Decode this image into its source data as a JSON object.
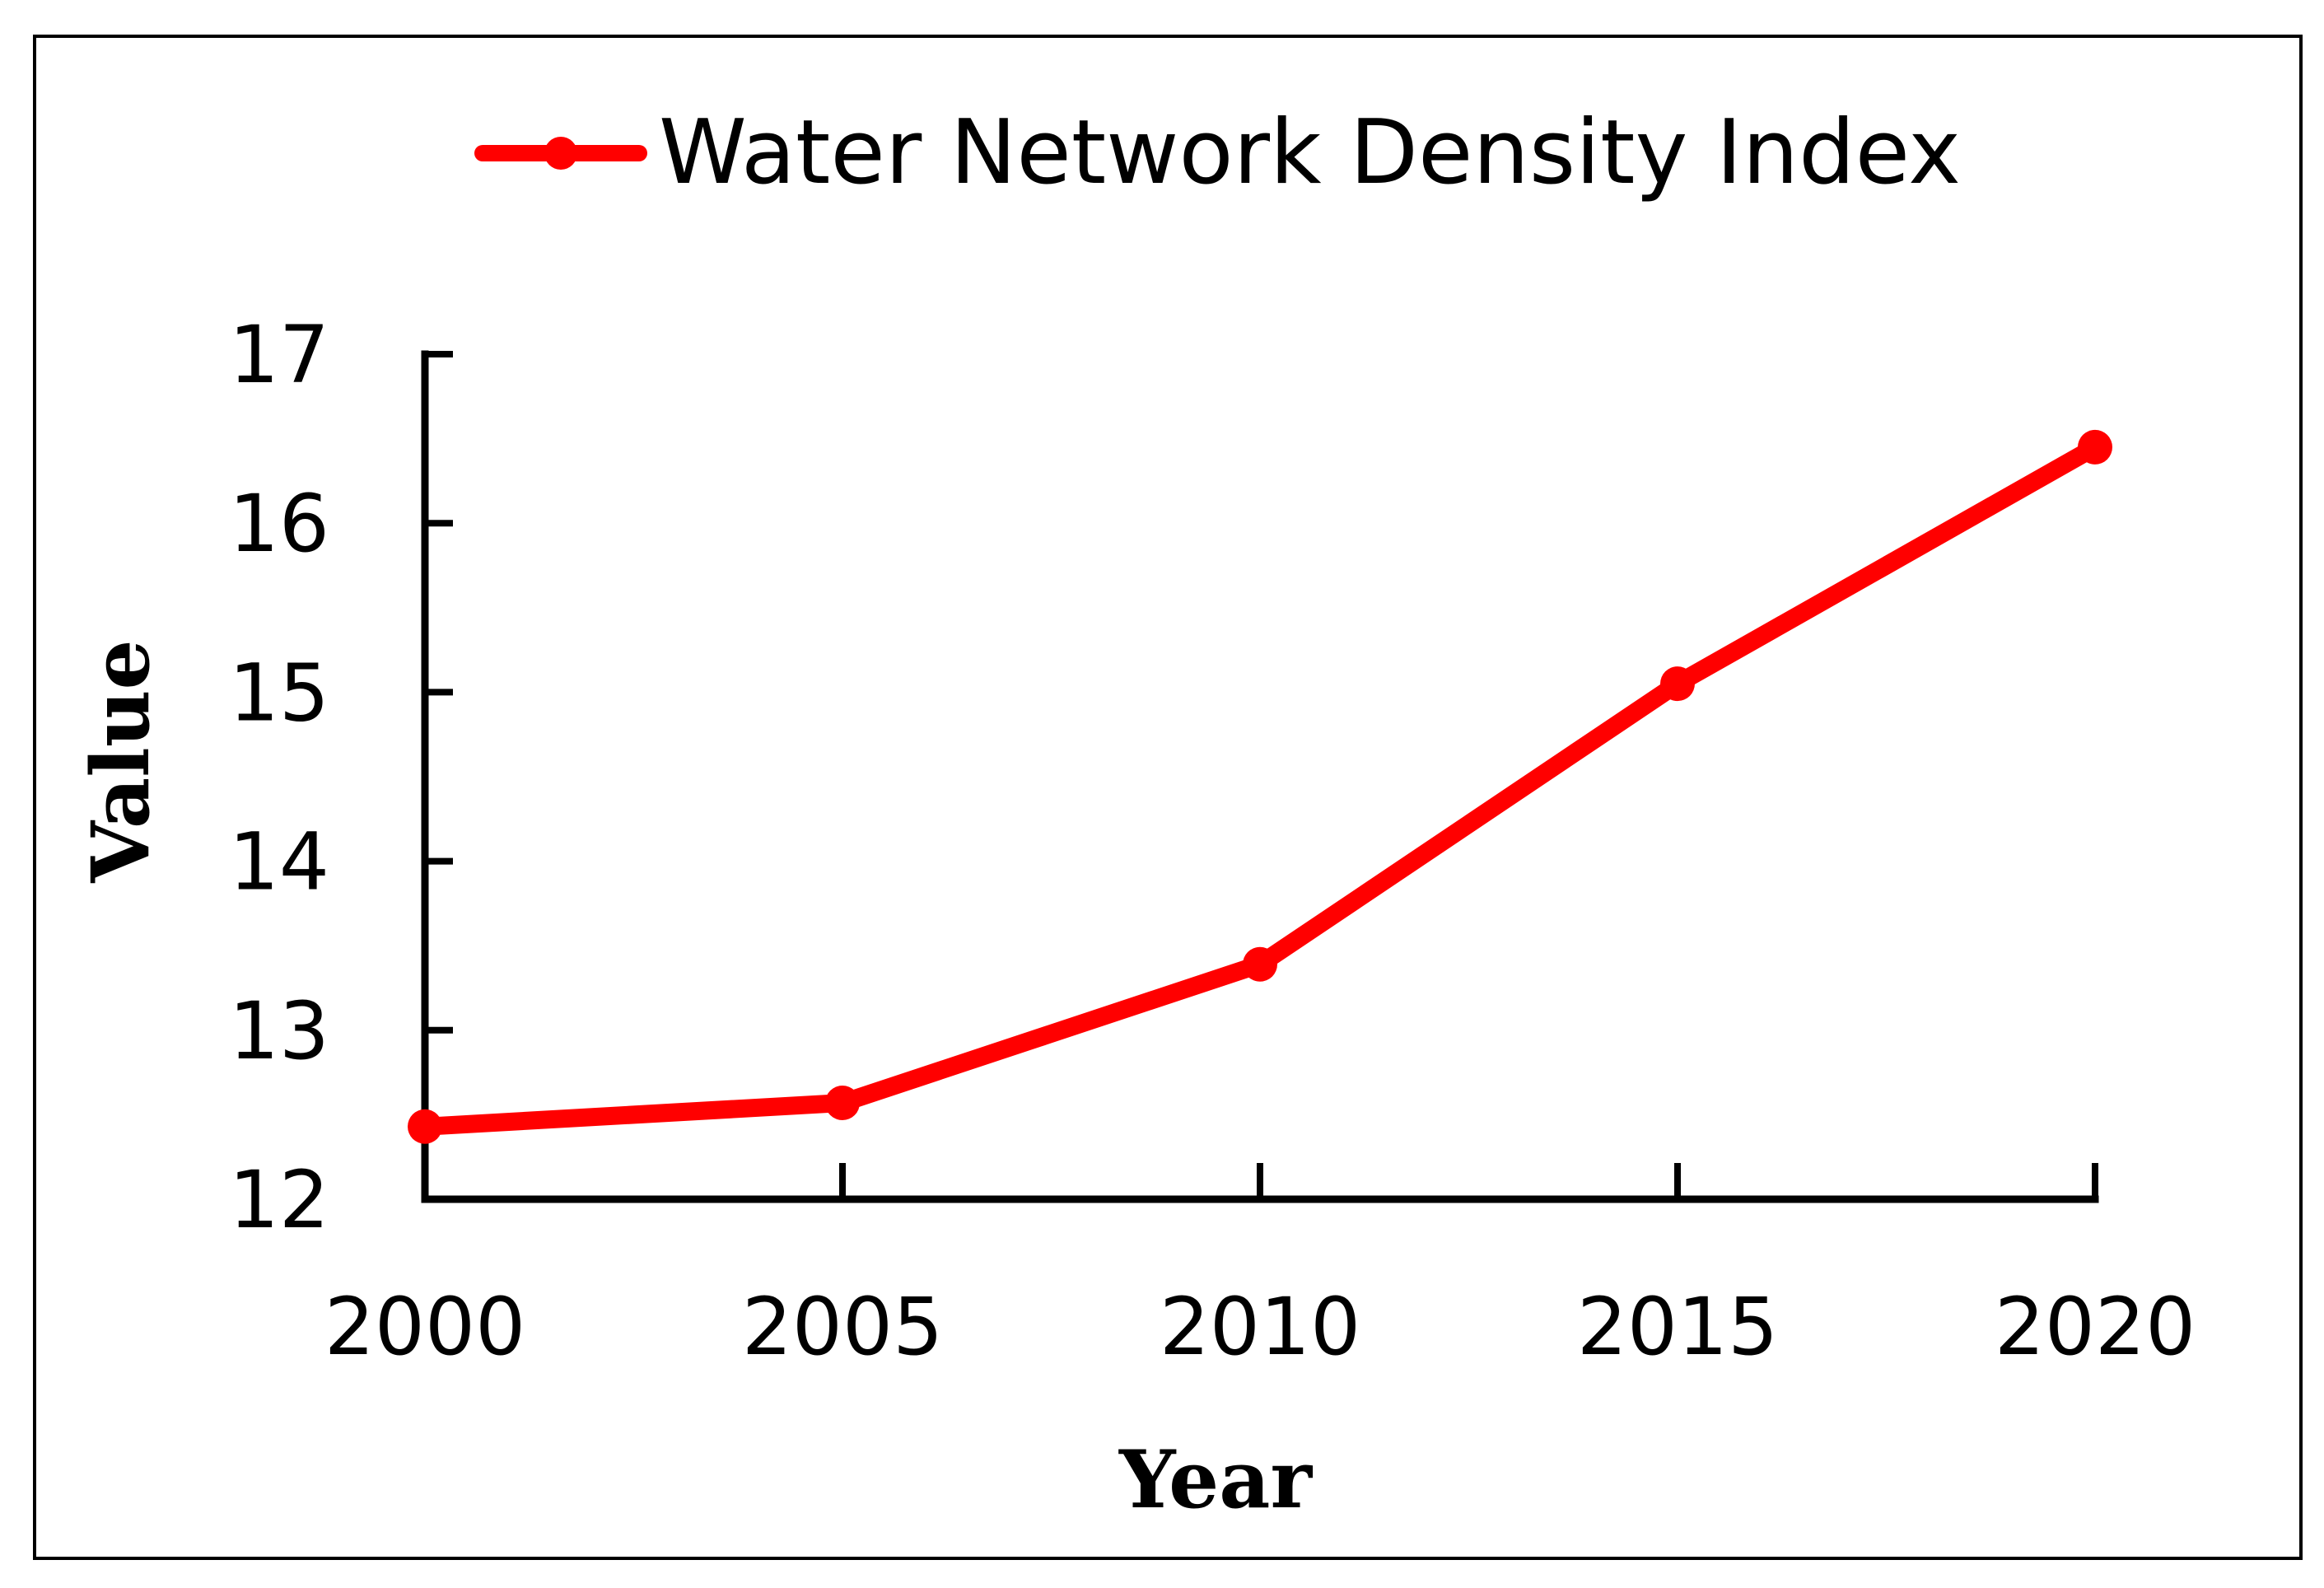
{
  "chart_data": {
    "type": "line",
    "title": "",
    "xlabel": "Year",
    "ylabel": "Value",
    "x": [
      2000,
      2005,
      2010,
      2015,
      2020
    ],
    "x_tick_labels": [
      "2000",
      "2005",
      "2010",
      "2015",
      "2020"
    ],
    "y_tick_labels": [
      "12",
      "13",
      "14",
      "15",
      "16",
      "17"
    ],
    "y_ticks": [
      12,
      13,
      14,
      15,
      16,
      17
    ],
    "ylim": [
      12,
      17
    ],
    "grid": false,
    "legend_position": "top-center",
    "series": [
      {
        "name": "Water Network Density Index",
        "color": "#ff0000",
        "marker": "circle",
        "values": [
          12.43,
          12.57,
          13.39,
          15.05,
          16.45
        ]
      }
    ]
  }
}
